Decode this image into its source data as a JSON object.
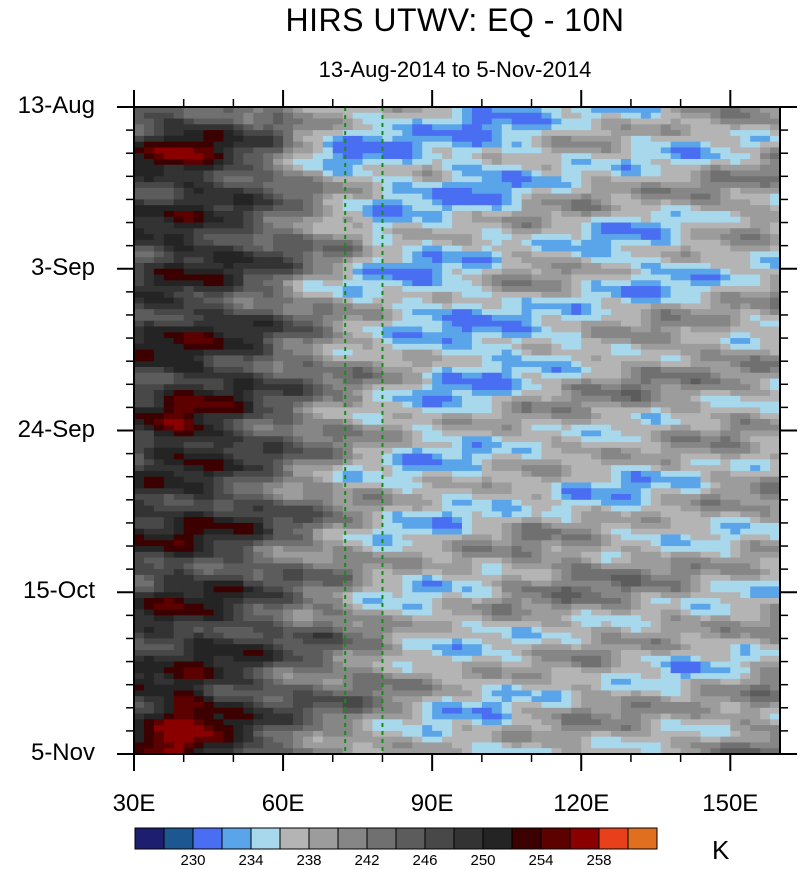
{
  "chart_data": {
    "type": "heatmap",
    "title": "HIRS UTWV: EQ - 10N",
    "subtitle": "13-Aug-2014 to 5-Nov-2014",
    "xlabel": "",
    "ylabel": "",
    "x_range": [
      30,
      160
    ],
    "x_units": "degrees east longitude",
    "y_range_days": [
      0,
      84
    ],
    "y_direction": "time increases downward",
    "x_ticks": [
      {
        "value": 30,
        "label": "30E"
      },
      {
        "value": 60,
        "label": "60E"
      },
      {
        "value": 90,
        "label": "90E"
      },
      {
        "value": 120,
        "label": "120E"
      },
      {
        "value": 150,
        "label": "150E"
      }
    ],
    "y_ticks": [
      {
        "day": 0,
        "label": "13-Aug"
      },
      {
        "day": 21,
        "label": "3-Sep"
      },
      {
        "day": 42,
        "label": "24-Sep"
      },
      {
        "day": 63,
        "label": "15-Oct"
      },
      {
        "day": 84,
        "label": "5-Nov"
      }
    ],
    "reference_lines_lon": [
      72.5,
      80
    ],
    "colorbar": {
      "units": "K",
      "colors": [
        "#1e1e70",
        "#1c5791",
        "#4a6ef2",
        "#5aa5ea",
        "#a8d8ec",
        "#b4b4b4",
        "#9c9c9c",
        "#868686",
        "#707070",
        "#5c5c5c",
        "#484848",
        "#333333",
        "#242424",
        "#3c0000",
        "#5c0000",
        "#8a0000",
        "#e8401a",
        "#e07020"
      ],
      "labels": [
        {
          "index": 1,
          "label": "230"
        },
        {
          "index": 3,
          "label": "234"
        },
        {
          "index": 5,
          "label": "238"
        },
        {
          "index": 7,
          "label": "242"
        },
        {
          "index": 9,
          "label": "246"
        },
        {
          "index": 11,
          "label": "250"
        },
        {
          "index": 13,
          "label": "254"
        },
        {
          "index": 15,
          "label": "258"
        }
      ]
    },
    "field": {
      "description": "estimated contour levels (colorbar index) by longitude and day",
      "lon_points": [
        30,
        40,
        50,
        60,
        70,
        80,
        90,
        100,
        110,
        120,
        130,
        140,
        150,
        160
      ],
      "day_points": [
        0,
        6,
        12,
        18,
        24,
        30,
        36,
        42,
        48,
        54,
        60,
        66,
        72,
        78,
        84
      ],
      "levels": [
        [
          9,
          10,
          9,
          7,
          5,
          4,
          4,
          3,
          4,
          5,
          4,
          5,
          6,
          6
        ],
        [
          11,
          14,
          11,
          8,
          3,
          3,
          4,
          3,
          4,
          5,
          5,
          4,
          5,
          6
        ],
        [
          10,
          11,
          10,
          8,
          6,
          4,
          4,
          3,
          5,
          6,
          5,
          6,
          7,
          6
        ],
        [
          11,
          12,
          11,
          9,
          7,
          4,
          4,
          5,
          6,
          4,
          3,
          4,
          5,
          5
        ],
        [
          10,
          11,
          10,
          8,
          5,
          4,
          3,
          4,
          6,
          5,
          4,
          4,
          5,
          6
        ],
        [
          11,
          12,
          11,
          9,
          7,
          5,
          4,
          3,
          3,
          4,
          6,
          7,
          6,
          5
        ],
        [
          10,
          12,
          11,
          9,
          7,
          6,
          4,
          3,
          5,
          6,
          7,
          6,
          6,
          6
        ],
        [
          11,
          14,
          11,
          9,
          7,
          5,
          4,
          5,
          6,
          6,
          5,
          6,
          6,
          5
        ],
        [
          10,
          11,
          10,
          8,
          6,
          5,
          4,
          4,
          5,
          4,
          4,
          5,
          6,
          6
        ],
        [
          11,
          12,
          11,
          9,
          7,
          5,
          4,
          5,
          6,
          5,
          4,
          5,
          5,
          6
        ],
        [
          10,
          11,
          10,
          8,
          7,
          5,
          5,
          6,
          7,
          8,
          7,
          6,
          5,
          5
        ],
        [
          11,
          12,
          11,
          9,
          8,
          5,
          4,
          5,
          6,
          6,
          6,
          6,
          5,
          6
        ],
        [
          10,
          11,
          11,
          9,
          8,
          7,
          5,
          5,
          5,
          6,
          5,
          4,
          5,
          6
        ],
        [
          11,
          15,
          11,
          9,
          8,
          7,
          5,
          4,
          5,
          6,
          6,
          5,
          6,
          7
        ],
        [
          12,
          15,
          12,
          9,
          7,
          5,
          4,
          4,
          5,
          6,
          6,
          6,
          7,
          7
        ]
      ]
    }
  }
}
